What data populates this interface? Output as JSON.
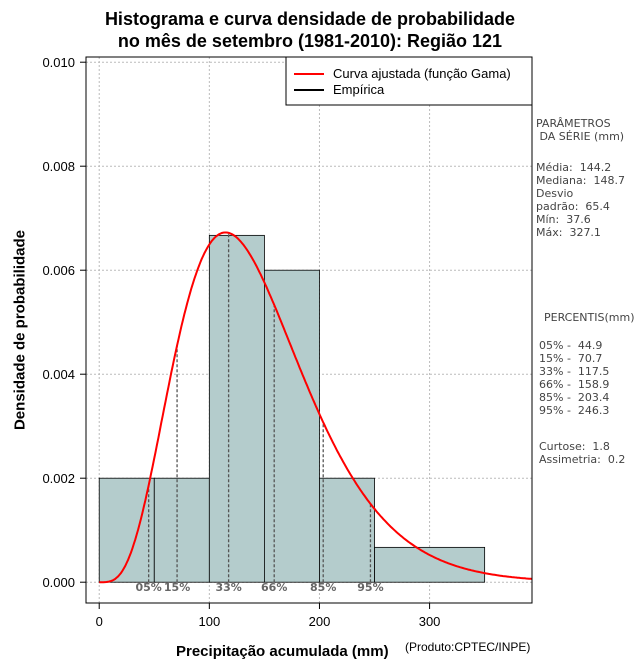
{
  "title_line1": "Histograma e curva densidade de probabilidade",
  "title_line2": "no mês de setembro (1981-2010): Região 121",
  "credit": "(Produto:CPTEC/INPE)",
  "colors": {
    "bar_fill": "#b4cccc",
    "curve": "#ff0000",
    "grid": "#bbbbbb",
    "percentile_line": "#555555"
  },
  "chart_data": {
    "type": "bar",
    "xlabel": "Precipitação acumulada (mm)",
    "ylabel": "Densidade de probabilidade",
    "xlim": [
      -12,
      393
    ],
    "ylim": [
      -0.0004,
      0.0101
    ],
    "x_ticks": [
      0,
      100,
      200,
      300
    ],
    "y_ticks": [
      "0.000",
      "0.002",
      "0.004",
      "0.006",
      "0.008",
      "0.010"
    ],
    "grid": true,
    "legend_position": "top-right",
    "legend": [
      {
        "label": "Curva ajustada (função Gama)",
        "color": "#ff0000"
      },
      {
        "label": "Empírica",
        "color": "#000000"
      }
    ],
    "bins": [
      {
        "start": 0,
        "end": 50,
        "density": 0.002
      },
      {
        "start": 50,
        "end": 100,
        "density": 0.002
      },
      {
        "start": 100,
        "end": 150,
        "density": 0.00667
      },
      {
        "start": 150,
        "end": 200,
        "density": 0.006
      },
      {
        "start": 200,
        "end": 250,
        "density": 0.002
      },
      {
        "start": 250,
        "end": 350,
        "density": 0.00067
      }
    ],
    "gamma_fit": {
      "shape": 4.9,
      "scale": 29.4,
      "x_range": [
        0,
        393
      ]
    },
    "percentile_markers": [
      {
        "label": "05%",
        "x": 44.9
      },
      {
        "label": "15%",
        "x": 70.7
      },
      {
        "label": "33%",
        "x": 117.5
      },
      {
        "label": "66%",
        "x": 158.9
      },
      {
        "label": "85%",
        "x": 203.4
      },
      {
        "label": "95%",
        "x": 246.3
      }
    ]
  },
  "parametros": {
    "header": "PARÂMETROS\n DA SÉRIE (mm)",
    "body": "Média:  144.2\nMediana:  148.7\nDesvio\npadrão:  65.4\nMín:  37.6\nMáx:  327.1"
  },
  "percentis": {
    "header": "PERCENTIS(mm)",
    "body": "05% -  44.9\n15% -  70.7\n33% -  117.5\n66% -  158.9\n85% -  203.4\n95% -  246.3"
  },
  "stats": "Curtose:  1.8\nAssimetria:  0.2"
}
